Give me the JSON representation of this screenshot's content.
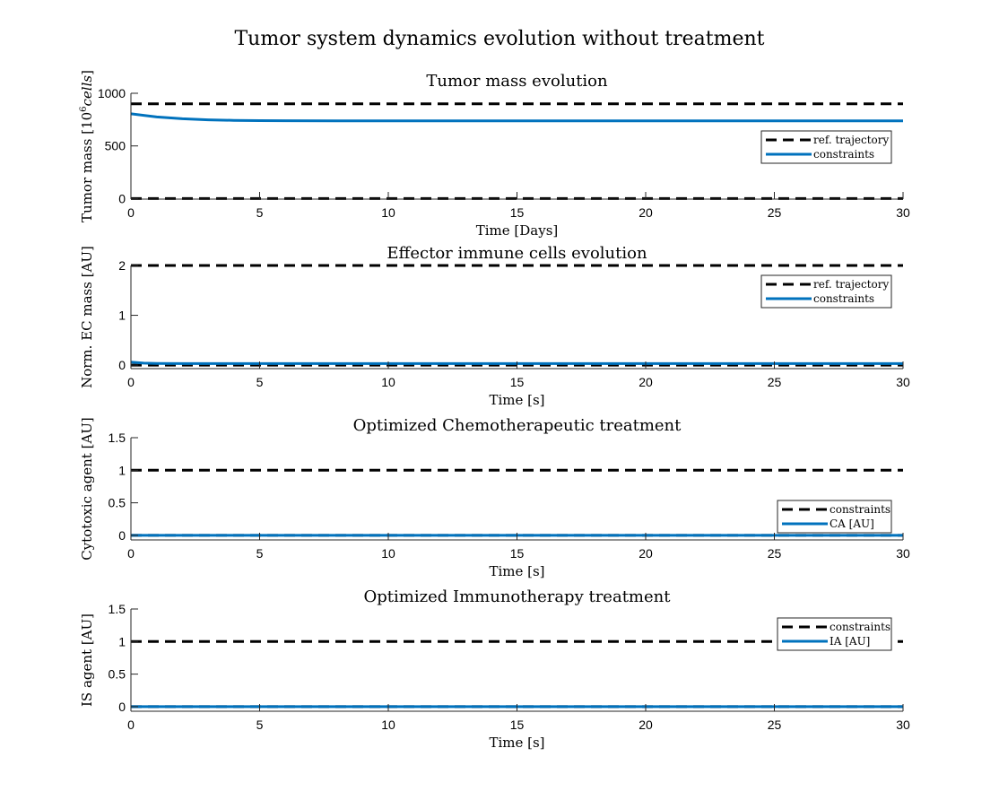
{
  "figure": {
    "title": "Tumor system dynamics evolution without treatment"
  },
  "colors": {
    "dashed": "#000000",
    "solid": "#0072BD",
    "axis": "#262626",
    "background": "#ffffff"
  },
  "chart_data": [
    {
      "type": "line",
      "title": "Tumor mass evolution",
      "xlabel": "Time [Days]",
      "ylabel": "Tumor mass [10",
      "ylabel_sup": "6",
      "ylabel_italic": "cells",
      "ylabel_end": "]",
      "xlim": [
        0,
        30
      ],
      "ylim": [
        -5,
        1000
      ],
      "xticks": [
        0,
        5,
        10,
        15,
        20,
        25,
        30
      ],
      "yticks": [
        0,
        500,
        1000
      ],
      "grid": false,
      "legend": {
        "placement": "right",
        "entries": [
          {
            "label": "ref. trajectory",
            "style": "dashed"
          },
          {
            "label": "constraints",
            "style": "solid"
          }
        ]
      },
      "series": [
        {
          "style": "dashed",
          "x": [
            0,
            30
          ],
          "y": [
            900,
            900
          ]
        },
        {
          "style": "dashed",
          "x": [
            0,
            30
          ],
          "y": [
            0,
            0
          ]
        },
        {
          "style": "solid",
          "x": [
            0,
            1,
            2,
            3,
            4,
            5,
            6,
            8,
            10,
            15,
            20,
            25,
            30
          ],
          "y": [
            805,
            775,
            758,
            748,
            743,
            740,
            739,
            738,
            738,
            738,
            738,
            738,
            738
          ]
        }
      ]
    },
    {
      "type": "line",
      "title": "Effector immune cells evolution",
      "xlabel": "Time [s]",
      "ylabel": "Norm. EC mass [AU]",
      "xlim": [
        0,
        30
      ],
      "ylim": [
        -0.07,
        2.0
      ],
      "xticks": [
        0,
        5,
        10,
        15,
        20,
        25,
        30
      ],
      "yticks": [
        0,
        1,
        2
      ],
      "grid": false,
      "legend": {
        "placement": "top-right",
        "entries": [
          {
            "label": "ref. trajectory",
            "style": "dashed"
          },
          {
            "label": "constraints",
            "style": "solid"
          }
        ]
      },
      "series": [
        {
          "style": "dashed",
          "x": [
            0,
            30
          ],
          "y": [
            2,
            2
          ]
        },
        {
          "style": "dashed",
          "x": [
            0,
            30
          ],
          "y": [
            0,
            0
          ]
        },
        {
          "style": "solid",
          "x": [
            0,
            0.5,
            1,
            2,
            5,
            10,
            20,
            30
          ],
          "y": [
            0.06,
            0.04,
            0.035,
            0.03,
            0.03,
            0.03,
            0.03,
            0.03
          ]
        }
      ]
    },
    {
      "type": "line",
      "title": "Optimized Chemotherapeutic treatment",
      "xlabel": "Time [s]",
      "ylabel": "Cytotoxic agent [AU]",
      "xlim": [
        0,
        30
      ],
      "ylim": [
        -0.07,
        1.5
      ],
      "xticks": [
        0,
        5,
        10,
        15,
        20,
        25,
        30
      ],
      "yticks": [
        0,
        0.5,
        1,
        1.5
      ],
      "grid": false,
      "legend": {
        "placement": "bottom-right",
        "entries": [
          {
            "label": "constraints",
            "style": "dashed"
          },
          {
            "label": "CA [AU]",
            "style": "solid"
          }
        ]
      },
      "series": [
        {
          "style": "dashed",
          "x": [
            0,
            30
          ],
          "y": [
            1,
            1
          ]
        },
        {
          "style": "dashed",
          "x": [
            0,
            30
          ],
          "y": [
            0,
            0
          ]
        },
        {
          "style": "solid",
          "x": [
            0,
            30
          ],
          "y": [
            0,
            0
          ]
        }
      ]
    },
    {
      "type": "line",
      "title": "Optimized Immunotherapy treatment",
      "xlabel": "Time [s]",
      "ylabel": "IS agent [AU]",
      "xlim": [
        0,
        30
      ],
      "ylim": [
        -0.07,
        1.5
      ],
      "xticks": [
        0,
        5,
        10,
        15,
        20,
        25,
        30
      ],
      "yticks": [
        0,
        0.5,
        1,
        1.5
      ],
      "grid": false,
      "legend": {
        "placement": "top-right",
        "entries": [
          {
            "label": "constraints",
            "style": "dashed"
          },
          {
            "label": "IA [AU]",
            "style": "solid"
          }
        ]
      },
      "series": [
        {
          "style": "dashed",
          "x": [
            0,
            30
          ],
          "y": [
            1,
            1
          ]
        },
        {
          "style": "dashed",
          "x": [
            0,
            30
          ],
          "y": [
            0,
            0
          ]
        },
        {
          "style": "solid",
          "x": [
            0,
            30
          ],
          "y": [
            0,
            0
          ]
        }
      ]
    }
  ]
}
